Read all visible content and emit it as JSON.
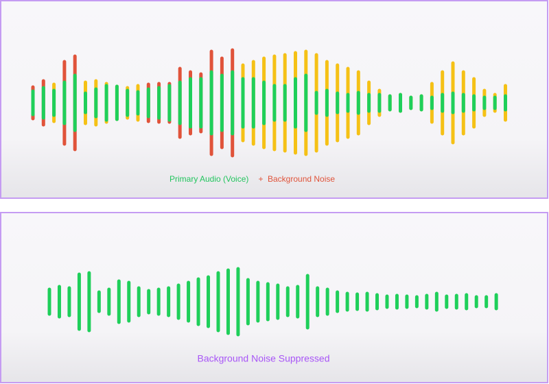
{
  "top_panel": {
    "label_voice": "Primary Audio (Voice)",
    "label_plus": "+",
    "label_noise": "Background Noise"
  },
  "bottom_panel": {
    "label": "Background Noise Suppressed"
  }
}
